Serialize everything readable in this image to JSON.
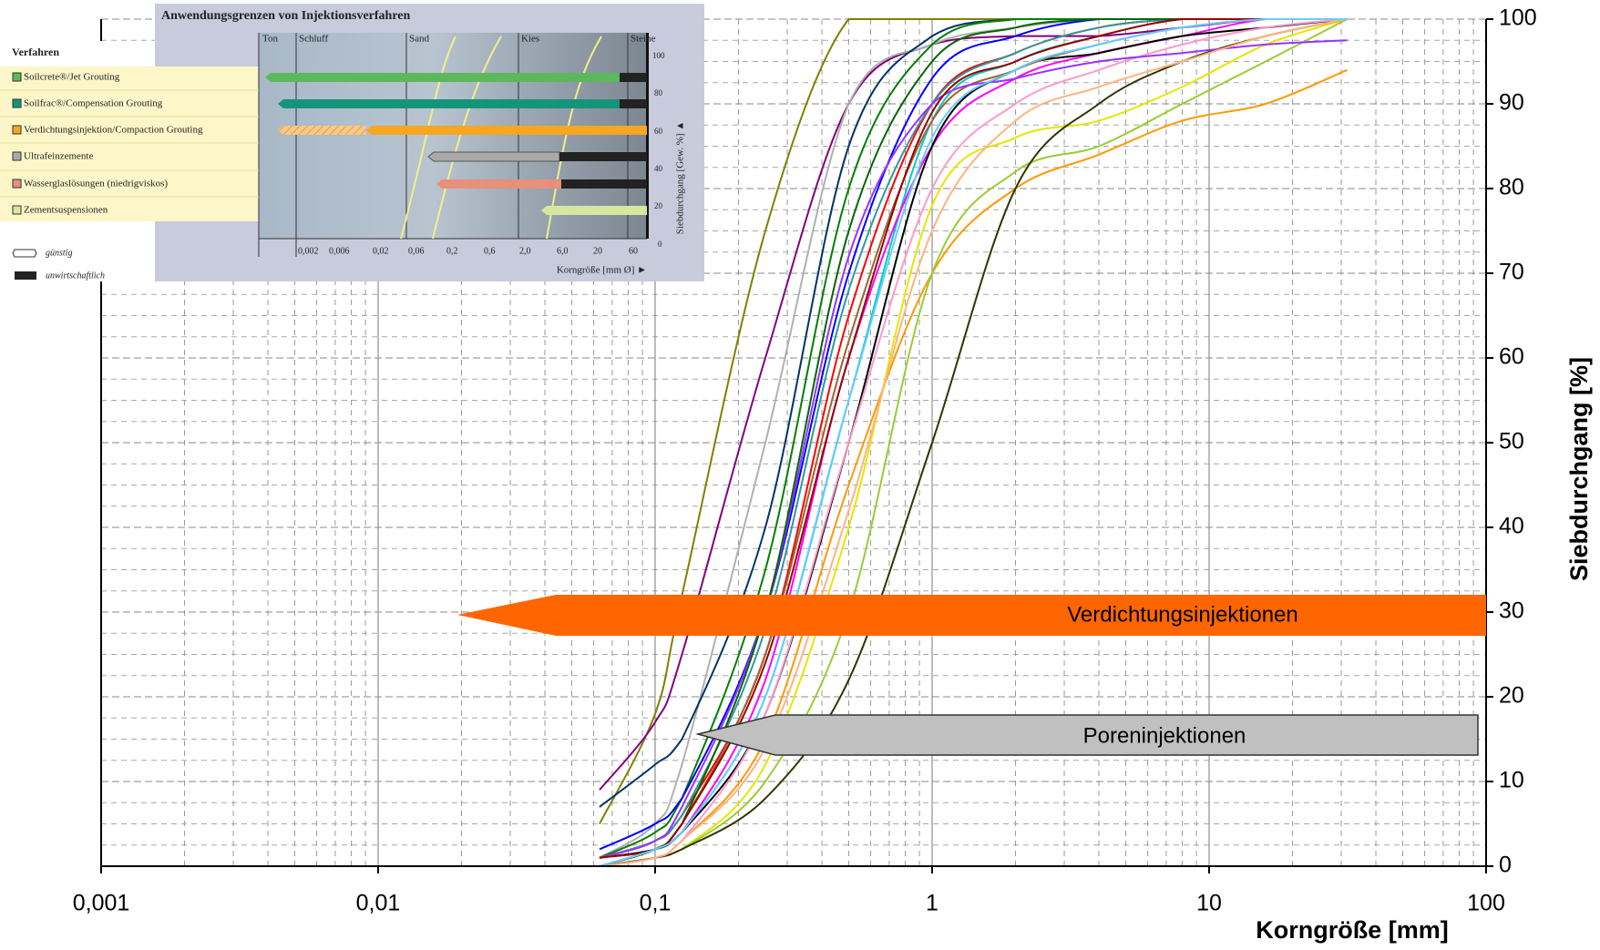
{
  "chart_data": {
    "type": "line",
    "x_label": "Korngröße [mm]",
    "y_label": "Siebdurchgang [%]",
    "xlim": [
      0.001,
      100
    ],
    "ylim": [
      0,
      100
    ],
    "log_x": true,
    "grid": true,
    "xticks": [
      {
        "value": 0.001,
        "label": "0,001"
      },
      {
        "value": 0.01,
        "label": "0,01"
      },
      {
        "value": 0.1,
        "label": "0,1"
      },
      1,
      10,
      100
    ],
    "yticks": [
      0,
      10,
      20,
      30,
      40,
      50,
      60,
      70,
      80,
      90,
      100
    ],
    "x": [
      0.063,
      0.1,
      0.125,
      0.25,
      0.5,
      1,
      2,
      4,
      8,
      16,
      31.5
    ],
    "series": [
      {
        "color": "#808000",
        "values": [
          5,
          18,
          32,
          75,
          100,
          100,
          100,
          100,
          100,
          100,
          100
        ]
      },
      {
        "color": "#800080",
        "values": [
          9,
          17,
          25,
          60,
          90,
          97,
          98,
          98,
          99,
          100,
          100
        ]
      },
      {
        "color": "#b0b0b0",
        "values": [
          1,
          5,
          12,
          50,
          90,
          97,
          99,
          100,
          100,
          100,
          100
        ]
      },
      {
        "color": "#003366",
        "values": [
          7,
          12,
          15,
          40,
          85,
          98,
          100,
          100,
          100,
          100,
          100
        ]
      },
      {
        "color": "#008000",
        "values": [
          1,
          4,
          8,
          35,
          80,
          97,
          100,
          100,
          100,
          100,
          100
        ]
      },
      {
        "color": "#0000ff",
        "values": [
          2,
          5,
          8,
          30,
          70,
          93,
          98,
          100,
          100,
          100,
          100
        ]
      },
      {
        "color": "#ff0000",
        "values": [
          1,
          3,
          6,
          25,
          65,
          90,
          96,
          99,
          100,
          100,
          100
        ]
      },
      {
        "color": "#00cccc",
        "values": [
          0,
          2,
          4,
          20,
          55,
          88,
          95,
          98,
          100,
          100,
          100
        ]
      },
      {
        "color": "#ff00ff",
        "values": [
          0,
          2,
          4,
          22,
          60,
          85,
          93,
          96,
          98,
          100,
          100
        ]
      },
      {
        "color": "#000000",
        "values": [
          1,
          2,
          4,
          18,
          50,
          85,
          94,
          96,
          98,
          99,
          100
        ]
      },
      {
        "color": "#ff9900",
        "values": [
          0,
          1,
          3,
          15,
          45,
          70,
          80,
          84,
          88,
          90,
          94
        ]
      },
      {
        "color": "#e6e600",
        "values": [
          0,
          1,
          2,
          12,
          40,
          78,
          86,
          88,
          92,
          97,
          100
        ]
      },
      {
        "color": "#99cc33",
        "values": [
          0,
          1,
          2,
          10,
          30,
          70,
          82,
          85,
          90,
          95,
          100
        ]
      },
      {
        "color": "#333300",
        "values": [
          0,
          1,
          2,
          8,
          22,
          50,
          80,
          90,
          95,
          98,
          100
        ]
      },
      {
        "color": "#996633",
        "values": [
          0,
          2,
          5,
          25,
          62,
          88,
          94,
          97,
          99,
          100,
          100
        ]
      },
      {
        "color": "#ff99cc",
        "values": [
          0,
          1,
          3,
          18,
          50,
          80,
          90,
          94,
          97,
          99,
          100
        ]
      },
      {
        "color": "#339999",
        "values": [
          1,
          3,
          6,
          28,
          68,
          90,
          96,
          99,
          100,
          100,
          100
        ]
      },
      {
        "color": "#9933ff",
        "values": [
          1,
          3,
          7,
          30,
          72,
          90,
          93,
          95,
          96,
          97,
          97.5
        ]
      },
      {
        "color": "#ffb380",
        "values": [
          0,
          1,
          3,
          14,
          42,
          75,
          88,
          92,
          95,
          98,
          100
        ]
      },
      {
        "color": "#006600",
        "values": [
          0,
          2,
          5,
          30,
          75,
          95,
          99,
          100,
          100,
          100,
          100
        ]
      },
      {
        "color": "#990000",
        "values": [
          1,
          2,
          5,
          24,
          60,
          89,
          95,
          98,
          100,
          100,
          100
        ]
      },
      {
        "color": "#66ccff",
        "values": [
          0,
          2,
          4,
          20,
          55,
          86,
          94,
          97,
          99,
          100,
          100
        ]
      }
    ],
    "annotations": [
      "Verdichtungsinjektionen",
      "Poreninjektionen"
    ]
  },
  "inset": {
    "title": "Anwendungsgrenzen von Injektionsverfahren",
    "legend_title": "Verfahren",
    "methods": [
      "Soilcrete®/Jet Grouting",
      "Soilfrac®/Compensation Grouting",
      "Verdichtungsinjektion/Compaction Grouting",
      "Ultrafeinzemente",
      "Wasserglaslösungen (niedrigviskos)",
      "Zementsuspensionen"
    ],
    "legend_favorable": "günstig",
    "legend_uneconomic": "unwirtschaftlich",
    "soil_classes": [
      "Ton",
      "Schluff",
      "Sand",
      "Kies",
      "Steine"
    ],
    "x_ticks": [
      "0,002",
      "0,006",
      "0,02",
      "0,06",
      "0,2",
      "0,6",
      "2,0",
      "6,0",
      "20",
      "60"
    ],
    "y_ticks": [
      "100",
      "80",
      "60",
      "40",
      "20",
      "0"
    ],
    "y_label": "Siebdurchgang [Gew. %] ▲",
    "x_label": "Korngröße [mm Ø] ►"
  }
}
